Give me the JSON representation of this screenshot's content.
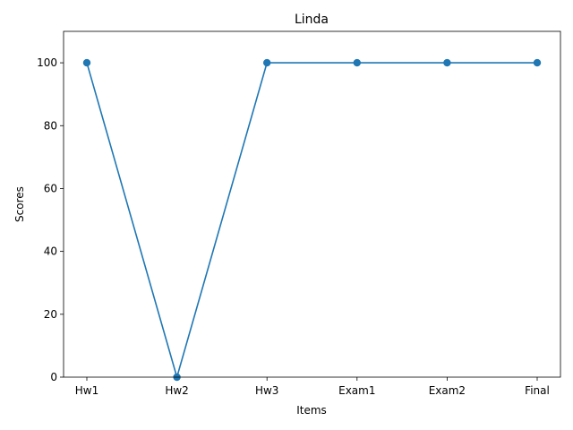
{
  "chart_data": {
    "type": "line",
    "title": "Linda",
    "xlabel": "Items",
    "ylabel": "Scores",
    "categories": [
      "Hw1",
      "Hw2",
      "Hw3",
      "Exam1",
      "Exam2",
      "Final"
    ],
    "series": [
      {
        "values": [
          100,
          0,
          100,
          100,
          100,
          100
        ],
        "color": "#1f77b4",
        "marker": "circle"
      }
    ],
    "ylim": [
      0,
      110
    ],
    "yticks": [
      0,
      20,
      40,
      60,
      80,
      100
    ],
    "grid": false,
    "legend": "none"
  }
}
